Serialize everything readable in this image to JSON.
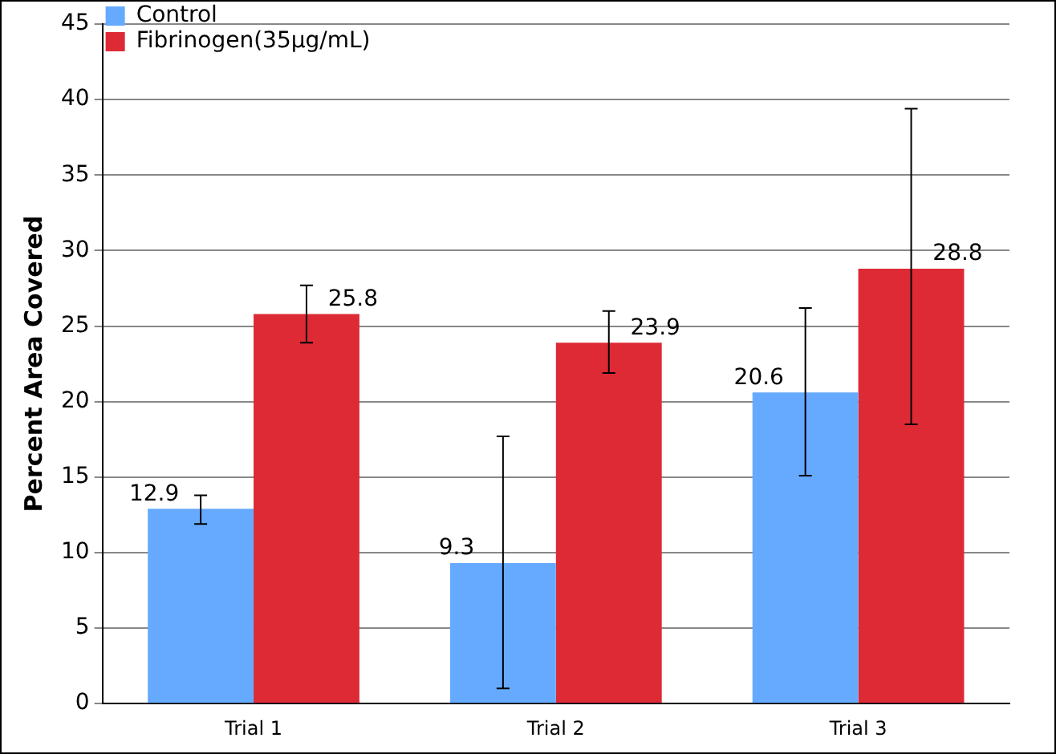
{
  "chart_data": {
    "type": "bar",
    "ylabel": "Percent Area Covered",
    "categories": [
      "Trial 1",
      "Trial 2",
      "Trial 3"
    ],
    "series": [
      {
        "name": "Control",
        "color": "#66aaff",
        "values": [
          12.9,
          9.3,
          20.6
        ],
        "errors": [
          [
            11.9,
            13.8
          ],
          [
            1.0,
            17.7
          ],
          [
            15.1,
            26.2
          ]
        ]
      },
      {
        "name": "Fibrinogen(35µg/mL)",
        "color": "#dd2a35",
        "values": [
          25.8,
          23.9,
          28.8
        ],
        "errors": [
          [
            23.9,
            27.7
          ],
          [
            21.9,
            26.0
          ],
          [
            18.5,
            39.4
          ]
        ]
      }
    ],
    "ylim": [
      0,
      45
    ],
    "yticks": [
      0,
      5,
      10,
      15,
      20,
      25,
      30,
      35,
      40,
      45
    ],
    "grid": "y",
    "legend": "top left",
    "data_labels": true
  }
}
